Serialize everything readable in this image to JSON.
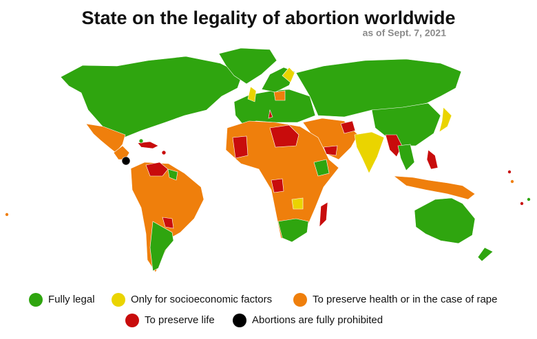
{
  "title": "State on the legality of abortion worldwide",
  "subtitle": "as of Sept. 7, 2021",
  "legend": [
    {
      "label": "Fully legal",
      "color": "#2fa50f"
    },
    {
      "label": "Only for socioeconomic factors",
      "color": "#ead400"
    },
    {
      "label": "To preserve health or in the case of rape",
      "color": "#ef7f0c"
    },
    {
      "label": "To preserve life",
      "color": "#c80c0c"
    },
    {
      "label": "Abortions are fully prohibited",
      "color": "#000000"
    }
  ]
}
